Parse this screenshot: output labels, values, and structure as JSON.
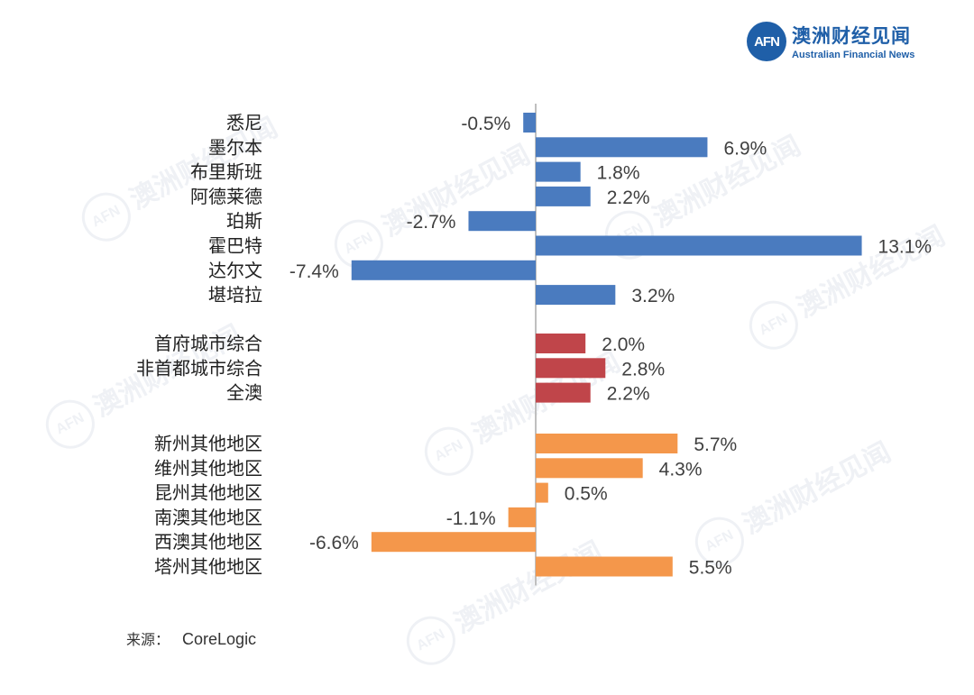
{
  "logo": {
    "mark": "AFN",
    "name_cn": "澳洲财经见闻",
    "name_en": "Australian Financial News"
  },
  "watermark": {
    "mark": "AFN",
    "text": "澳洲财经见闻"
  },
  "source": {
    "label": "来源：",
    "value": "CoreLogic"
  },
  "colors": {
    "group_capitals": "#4a7bbf",
    "group_aggregate": "#c0454a",
    "group_regional": "#f4974b",
    "axis": "#bfbfbf",
    "label_text": "#222222",
    "value_text": "#404040"
  },
  "chart_data": {
    "type": "bar",
    "orientation": "horizontal",
    "unit": "%",
    "xlim": [
      -7.4,
      13.1
    ],
    "groups": [
      {
        "name": "capitals",
        "color_key": "group_capitals",
        "categories": [
          "悉尼",
          "墨尔本",
          "布里斯班",
          "阿德莱德",
          "珀斯",
          "霍巴特",
          "达尔文",
          "堪培拉"
        ],
        "values": [
          -0.5,
          6.9,
          1.8,
          2.2,
          -2.7,
          13.1,
          -7.4,
          3.2
        ],
        "value_labels": [
          "-0.5%",
          "6.9%",
          "1.8%",
          "2.2%",
          "-2.7%",
          "13.1%",
          "-7.4%",
          "3.2%"
        ]
      },
      {
        "name": "aggregates",
        "color_key": "group_aggregate",
        "categories": [
          "首府城市综合",
          "非首都城市综合",
          "全澳"
        ],
        "values": [
          2.0,
          2.8,
          2.2
        ],
        "value_labels": [
          "2.0%",
          "2.8%",
          "2.2%"
        ]
      },
      {
        "name": "regional",
        "color_key": "group_regional",
        "categories": [
          "新州其他地区",
          "维州其他地区",
          "昆州其他地区",
          "南澳其他地区",
          "西澳其他地区",
          "塔州其他地区"
        ],
        "values": [
          5.7,
          4.3,
          0.5,
          -1.1,
          -6.6,
          5.5
        ],
        "value_labels": [
          "5.7%",
          "4.3%",
          "0.5%",
          "-1.1%",
          "-6.6%",
          "5.5%"
        ]
      }
    ]
  }
}
